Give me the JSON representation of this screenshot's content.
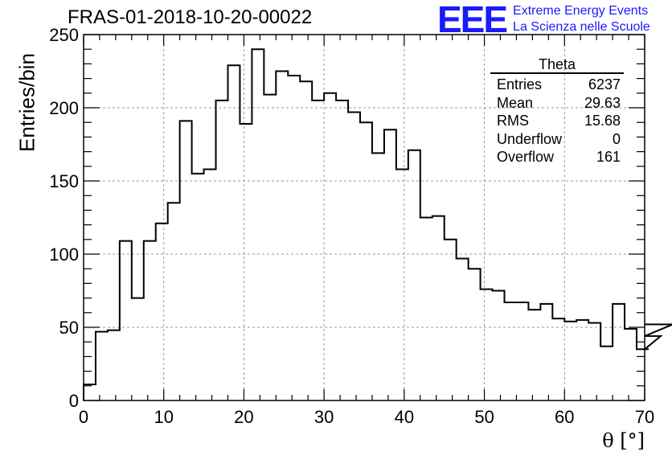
{
  "title": "FRAS-01-2018-10-20-00022",
  "logo": {
    "mark": "EEE",
    "line1": "Extreme Energy Events",
    "line2": "La Scienza nelle Scuole",
    "color": "#1a1aff"
  },
  "stats": {
    "title": "Theta",
    "rows": [
      {
        "label": "Entries",
        "value": "6237"
      },
      {
        "label": "Mean",
        "value": "29.63"
      },
      {
        "label": "RMS",
        "value": "15.68"
      },
      {
        "label": "Underflow",
        "value": "0"
      },
      {
        "label": "Overflow",
        "value": "161"
      }
    ]
  },
  "chart_data": {
    "type": "histogram",
    "xlabel": "θ [°]",
    "ylabel": "Entries/bin",
    "xlim": [
      0,
      70
    ],
    "ylim": [
      0,
      250
    ],
    "x_ticks": [
      0,
      10,
      20,
      30,
      40,
      50,
      60,
      70
    ],
    "y_ticks": [
      0,
      50,
      100,
      150,
      200,
      250
    ],
    "grid": true,
    "bin_width": 1.5,
    "bin_edges_start": 0,
    "values": [
      11,
      47,
      48,
      109,
      70,
      109,
      121,
      135,
      191,
      155,
      158,
      205,
      229,
      189,
      240,
      209,
      225,
      222,
      218,
      205,
      210,
      205,
      197,
      190,
      169,
      185,
      158,
      171,
      125,
      126,
      110,
      97,
      90,
      76,
      75,
      67,
      67,
      62,
      66,
      56,
      54,
      55,
      53,
      37,
      66,
      49,
      35,
      35,
      44,
      52
    ]
  }
}
